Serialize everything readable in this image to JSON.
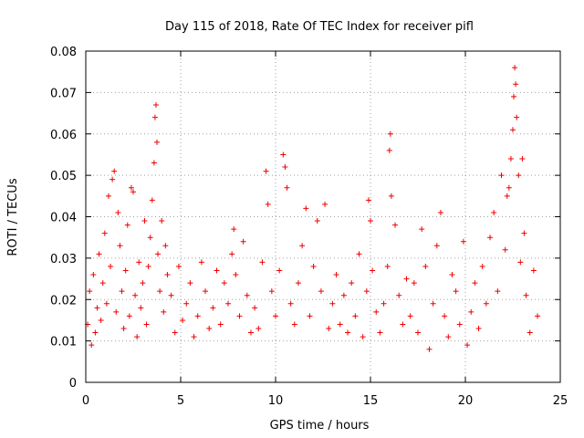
{
  "chart_data": {
    "type": "scatter",
    "title": "Day 115 of 2018, Rate Of TEC Index for receiver pifl",
    "xlabel": "GPS time / hours",
    "ylabel": "ROTI / TECUs",
    "xlim": [
      0,
      25
    ],
    "ylim": [
      0,
      0.08
    ],
    "x_ticks": [
      0,
      5,
      10,
      15,
      20,
      25
    ],
    "x_tick_labels": [
      "0",
      "5",
      "10",
      "15",
      "20",
      "25"
    ],
    "y_ticks": [
      0,
      0.01,
      0.02,
      0.03,
      0.04,
      0.05,
      0.06,
      0.07,
      0.08
    ],
    "y_tick_labels": [
      "0",
      "0.01",
      "0.02",
      "0.03",
      "0.04",
      "0.05",
      "0.06",
      "0.07",
      "0.08"
    ],
    "grid": true,
    "marker": "+",
    "color": "#ee0000",
    "series": [
      {
        "name": "ROTI",
        "points": [
          [
            0.1,
            0.014
          ],
          [
            0.2,
            0.022
          ],
          [
            0.3,
            0.009
          ],
          [
            0.4,
            0.026
          ],
          [
            0.5,
            0.012
          ],
          [
            0.6,
            0.018
          ],
          [
            0.7,
            0.031
          ],
          [
            0.8,
            0.015
          ],
          [
            0.9,
            0.024
          ],
          [
            1.0,
            0.036
          ],
          [
            1.1,
            0.019
          ],
          [
            1.2,
            0.045
          ],
          [
            1.3,
            0.028
          ],
          [
            1.4,
            0.049
          ],
          [
            1.5,
            0.051
          ],
          [
            1.6,
            0.017
          ],
          [
            1.7,
            0.041
          ],
          [
            1.8,
            0.033
          ],
          [
            1.9,
            0.022
          ],
          [
            2.0,
            0.013
          ],
          [
            2.1,
            0.027
          ],
          [
            2.2,
            0.038
          ],
          [
            2.3,
            0.016
          ],
          [
            2.4,
            0.047
          ],
          [
            2.5,
            0.046
          ],
          [
            2.6,
            0.021
          ],
          [
            2.7,
            0.011
          ],
          [
            2.8,
            0.029
          ],
          [
            2.9,
            0.018
          ],
          [
            3.0,
            0.024
          ],
          [
            3.1,
            0.039
          ],
          [
            3.2,
            0.014
          ],
          [
            3.3,
            0.028
          ],
          [
            3.4,
            0.035
          ],
          [
            3.5,
            0.044
          ],
          [
            3.6,
            0.053
          ],
          [
            3.65,
            0.064
          ],
          [
            3.7,
            0.067
          ],
          [
            3.75,
            0.058
          ],
          [
            3.8,
            0.031
          ],
          [
            3.9,
            0.022
          ],
          [
            4.0,
            0.039
          ],
          [
            4.1,
            0.017
          ],
          [
            4.2,
            0.033
          ],
          [
            4.3,
            0.026
          ],
          [
            4.5,
            0.021
          ],
          [
            4.7,
            0.012
          ],
          [
            4.9,
            0.028
          ],
          [
            5.1,
            0.015
          ],
          [
            5.3,
            0.019
          ],
          [
            5.5,
            0.024
          ],
          [
            5.7,
            0.011
          ],
          [
            5.9,
            0.016
          ],
          [
            6.1,
            0.029
          ],
          [
            6.3,
            0.022
          ],
          [
            6.5,
            0.013
          ],
          [
            6.7,
            0.018
          ],
          [
            6.9,
            0.027
          ],
          [
            7.1,
            0.014
          ],
          [
            7.3,
            0.024
          ],
          [
            7.5,
            0.019
          ],
          [
            7.7,
            0.031
          ],
          [
            7.8,
            0.037
          ],
          [
            7.9,
            0.026
          ],
          [
            8.1,
            0.016
          ],
          [
            8.3,
            0.034
          ],
          [
            8.5,
            0.021
          ],
          [
            8.7,
            0.012
          ],
          [
            8.9,
            0.018
          ],
          [
            9.1,
            0.013
          ],
          [
            9.3,
            0.029
          ],
          [
            9.5,
            0.051
          ],
          [
            9.6,
            0.043
          ],
          [
            9.8,
            0.022
          ],
          [
            10.0,
            0.016
          ],
          [
            10.2,
            0.027
          ],
          [
            10.4,
            0.055
          ],
          [
            10.5,
            0.052
          ],
          [
            10.6,
            0.047
          ],
          [
            10.8,
            0.019
          ],
          [
            11.0,
            0.014
          ],
          [
            11.2,
            0.024
          ],
          [
            11.4,
            0.033
          ],
          [
            11.6,
            0.042
          ],
          [
            11.8,
            0.016
          ],
          [
            12.0,
            0.028
          ],
          [
            12.2,
            0.039
          ],
          [
            12.4,
            0.022
          ],
          [
            12.6,
            0.043
          ],
          [
            12.8,
            0.013
          ],
          [
            13.0,
            0.019
          ],
          [
            13.2,
            0.026
          ],
          [
            13.4,
            0.014
          ],
          [
            13.6,
            0.021
          ],
          [
            13.8,
            0.012
          ],
          [
            14.0,
            0.024
          ],
          [
            14.2,
            0.016
          ],
          [
            14.4,
            0.031
          ],
          [
            14.6,
            0.011
          ],
          [
            14.8,
            0.022
          ],
          [
            14.9,
            0.044
          ],
          [
            15.0,
            0.039
          ],
          [
            15.1,
            0.027
          ],
          [
            15.3,
            0.017
          ],
          [
            15.5,
            0.012
          ],
          [
            15.7,
            0.019
          ],
          [
            15.9,
            0.028
          ],
          [
            16.0,
            0.056
          ],
          [
            16.05,
            0.06
          ],
          [
            16.1,
            0.045
          ],
          [
            16.3,
            0.038
          ],
          [
            16.5,
            0.021
          ],
          [
            16.7,
            0.014
          ],
          [
            16.9,
            0.025
          ],
          [
            17.1,
            0.016
          ],
          [
            17.3,
            0.024
          ],
          [
            17.5,
            0.012
          ],
          [
            17.7,
            0.037
          ],
          [
            17.9,
            0.028
          ],
          [
            18.1,
            0.008
          ],
          [
            18.3,
            0.019
          ],
          [
            18.5,
            0.033
          ],
          [
            18.7,
            0.041
          ],
          [
            18.9,
            0.016
          ],
          [
            19.1,
            0.011
          ],
          [
            19.3,
            0.026
          ],
          [
            19.5,
            0.022
          ],
          [
            19.7,
            0.014
          ],
          [
            19.9,
            0.034
          ],
          [
            20.1,
            0.009
          ],
          [
            20.3,
            0.017
          ],
          [
            20.5,
            0.024
          ],
          [
            20.7,
            0.013
          ],
          [
            20.9,
            0.028
          ],
          [
            21.1,
            0.019
          ],
          [
            21.3,
            0.035
          ],
          [
            21.5,
            0.041
          ],
          [
            21.7,
            0.022
          ],
          [
            21.9,
            0.05
          ],
          [
            22.1,
            0.032
          ],
          [
            22.2,
            0.045
          ],
          [
            22.3,
            0.047
          ],
          [
            22.4,
            0.054
          ],
          [
            22.5,
            0.061
          ],
          [
            22.55,
            0.069
          ],
          [
            22.6,
            0.076
          ],
          [
            22.65,
            0.072
          ],
          [
            22.7,
            0.064
          ],
          [
            22.8,
            0.05
          ],
          [
            22.9,
            0.029
          ],
          [
            23.0,
            0.054
          ],
          [
            23.1,
            0.036
          ],
          [
            23.2,
            0.021
          ],
          [
            23.4,
            0.012
          ],
          [
            23.6,
            0.027
          ],
          [
            23.8,
            0.016
          ]
        ]
      }
    ]
  }
}
